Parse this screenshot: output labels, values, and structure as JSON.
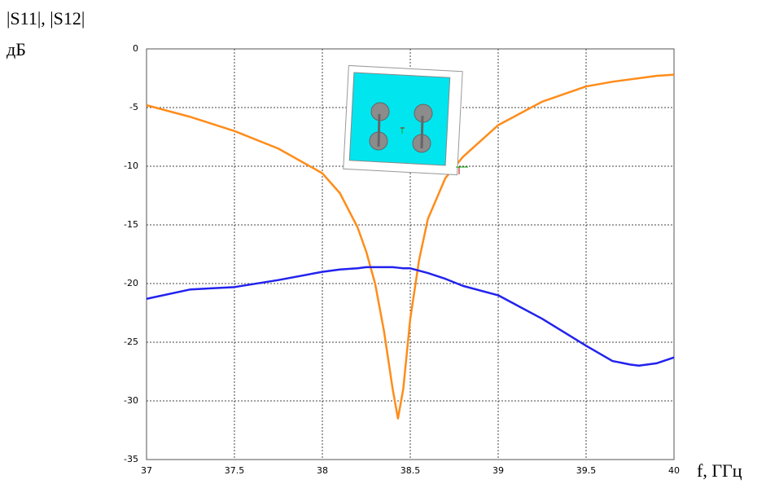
{
  "chart_data": {
    "type": "line",
    "y_label": "|S11|, |S12|",
    "y_unit": "дБ",
    "x_label": "f, ГГц",
    "x": [
      37,
      37.25,
      37.5,
      37.75,
      38,
      38.1,
      38.2,
      38.25,
      38.3,
      38.35,
      38.4,
      38.43,
      38.46,
      38.5,
      38.55,
      38.6,
      38.7,
      38.8,
      39,
      39.25,
      39.5,
      39.65,
      39.75,
      39.8,
      39.9,
      40
    ],
    "series": [
      {
        "color": "#ff8c1a",
        "values": [
          -4.8,
          -5.8,
          -7,
          -8.5,
          -10.6,
          -12.3,
          -15.2,
          -17.3,
          -20,
          -24,
          -29,
          -31.5,
          -29,
          -23,
          -18,
          -14.5,
          -11,
          -9.2,
          -6.5,
          -4.5,
          -3.2,
          -2.8,
          -2.6,
          -2.5,
          -2.3,
          -2.2
        ]
      },
      {
        "color": "#2222ee",
        "values": [
          -21.3,
          -20.5,
          -20.3,
          -19.7,
          -19.0,
          -18.8,
          -18.7,
          -18.6,
          -18.6,
          -18.6,
          -18.6,
          -18.65,
          -18.7,
          -18.7,
          -18.9,
          -19.1,
          -19.6,
          -20.2,
          -21,
          -23,
          -25.3,
          -26.6,
          -26.9,
          -27,
          -26.8,
          -26.3
        ]
      }
    ],
    "xlim": [
      37,
      40
    ],
    "ylim": [
      -35,
      0
    ],
    "xticks": [
      37,
      37.5,
      38,
      38.5,
      39,
      39.5,
      40
    ],
    "yticks": [
      0,
      -5,
      -10,
      -15,
      -20,
      -25,
      -30,
      -35
    ],
    "grid": true
  }
}
